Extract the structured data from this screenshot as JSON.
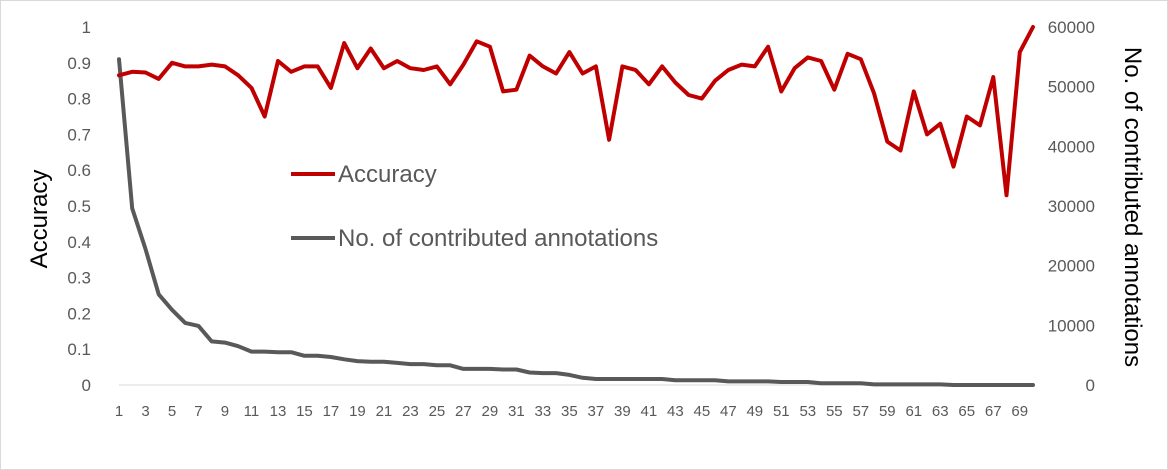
{
  "chart_data": {
    "type": "line",
    "x": [
      1,
      2,
      3,
      4,
      5,
      6,
      7,
      8,
      9,
      10,
      11,
      12,
      13,
      14,
      15,
      16,
      17,
      18,
      19,
      20,
      21,
      22,
      23,
      24,
      25,
      26,
      27,
      28,
      29,
      30,
      31,
      32,
      33,
      34,
      35,
      36,
      37,
      38,
      39,
      40,
      41,
      42,
      43,
      44,
      45,
      46,
      47,
      48,
      49,
      50,
      51,
      52,
      53,
      54,
      55,
      56,
      57,
      58,
      59,
      60,
      61,
      62,
      63,
      64,
      65,
      66,
      67,
      68,
      69,
      70
    ],
    "x_tick_labels": [
      "1",
      "3",
      "5",
      "7",
      "9",
      "11",
      "13",
      "15",
      "17",
      "19",
      "21",
      "23",
      "25",
      "27",
      "29",
      "31",
      "33",
      "35",
      "37",
      "39",
      "41",
      "43",
      "45",
      "47",
      "49",
      "51",
      "53",
      "55",
      "57",
      "59",
      "61",
      "63",
      "65",
      "67",
      "69"
    ],
    "y_left_label": "Accuracy",
    "y_right_label": "No. of contributed annotations",
    "y_left_ticks": [
      "0",
      "0.1",
      "0.2",
      "0.3",
      "0.4",
      "0.5",
      "0.6",
      "0.7",
      "0.8",
      "0.9",
      "1"
    ],
    "y_right_ticks": [
      "0",
      "10000",
      "20000",
      "30000",
      "40000",
      "50000",
      "60000"
    ],
    "ylim_left": [
      0,
      1
    ],
    "ylim_right": [
      0,
      60000
    ],
    "legend_position": "center-left",
    "grid": false,
    "series": [
      {
        "name": "Accuracy",
        "axis": "left",
        "color": "#c00000",
        "values": [
          0.865,
          0.875,
          0.873,
          0.855,
          0.9,
          0.89,
          0.89,
          0.895,
          0.89,
          0.865,
          0.83,
          0.75,
          0.905,
          0.875,
          0.89,
          0.89,
          0.83,
          0.955,
          0.885,
          0.94,
          0.885,
          0.905,
          0.885,
          0.88,
          0.89,
          0.84,
          0.895,
          0.96,
          0.945,
          0.82,
          0.825,
          0.92,
          0.89,
          0.87,
          0.93,
          0.87,
          0.89,
          0.685,
          0.89,
          0.88,
          0.84,
          0.89,
          0.845,
          0.81,
          0.8,
          0.85,
          0.88,
          0.895,
          0.89,
          0.945,
          0.82,
          0.885,
          0.915,
          0.905,
          0.825,
          0.925,
          0.91,
          0.815,
          0.68,
          0.655,
          0.82,
          0.7,
          0.73,
          0.61,
          0.75,
          0.725,
          0.86,
          0.53,
          0.93,
          1.0
        ]
      },
      {
        "name": "No. of contributed annotations",
        "axis": "right",
        "color": "#595959",
        "values": [
          54600,
          29600,
          22800,
          15200,
          12600,
          10400,
          9900,
          7300,
          7100,
          6500,
          5600,
          5600,
          5500,
          5500,
          4900,
          4900,
          4700,
          4300,
          4000,
          3900,
          3900,
          3700,
          3500,
          3500,
          3300,
          3300,
          2700,
          2700,
          2700,
          2600,
          2600,
          2100,
          2000,
          2000,
          1700,
          1200,
          1000,
          1000,
          1000,
          1000,
          1000,
          1000,
          800,
          800,
          800,
          800,
          600,
          600,
          600,
          600,
          500,
          500,
          500,
          300,
          300,
          300,
          300,
          100,
          100,
          100,
          100,
          100,
          100,
          0,
          0,
          0,
          0,
          0,
          0,
          0
        ]
      }
    ]
  }
}
